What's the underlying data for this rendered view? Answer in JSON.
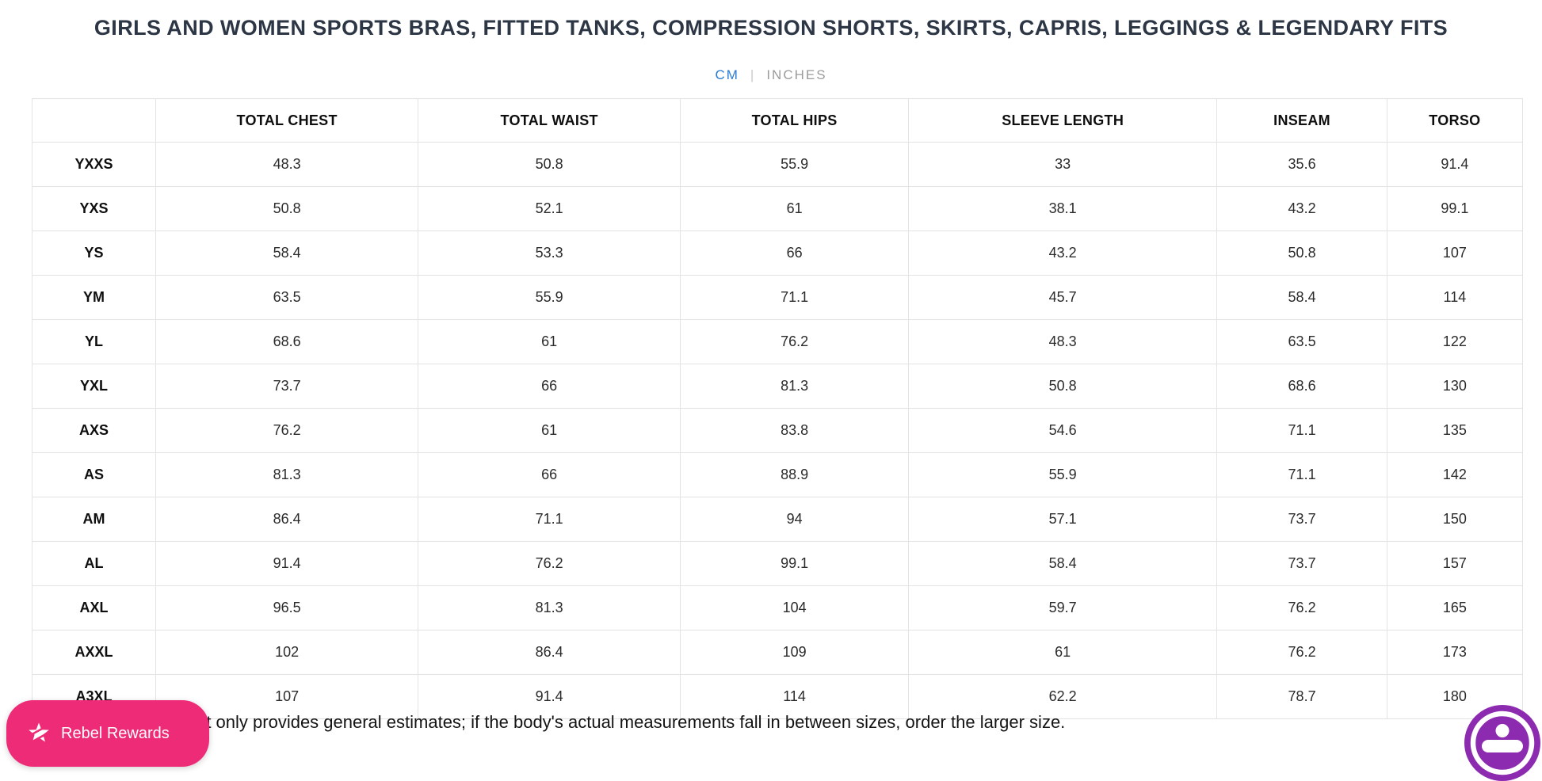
{
  "page": {
    "title": "GIRLS AND WOMEN SPORTS BRAS, FITTED TANKS, COMPRESSION SHORTS, SKIRTS, CAPRIS, LEGGINGS & LEGENDARY FITS",
    "note": "rt only provides general estimates; if the body's actual measurements fall in between sizes, order the larger size."
  },
  "unit_toggle": {
    "cm_label": "CM",
    "separator": "|",
    "inches_label": "INCHES",
    "selected": "CM",
    "active_color": "#2b7bd4",
    "inactive_color": "#9b9b9b"
  },
  "size_chart": {
    "columns": [
      "",
      "TOTAL CHEST",
      "TOTAL WAIST",
      "TOTAL HIPS",
      "SLEEVE LENGTH",
      "INSEAM",
      "TORSO"
    ],
    "rows": [
      {
        "size": "YXXS",
        "values": [
          "48.3",
          "50.8",
          "55.9",
          "33",
          "35.6",
          "91.4"
        ]
      },
      {
        "size": "YXS",
        "values": [
          "50.8",
          "52.1",
          "61",
          "38.1",
          "43.2",
          "99.1"
        ]
      },
      {
        "size": "YS",
        "values": [
          "58.4",
          "53.3",
          "66",
          "43.2",
          "50.8",
          "107"
        ]
      },
      {
        "size": "YM",
        "values": [
          "63.5",
          "55.9",
          "71.1",
          "45.7",
          "58.4",
          "114"
        ]
      },
      {
        "size": "YL",
        "values": [
          "68.6",
          "61",
          "76.2",
          "48.3",
          "63.5",
          "122"
        ]
      },
      {
        "size": "YXL",
        "values": [
          "73.7",
          "66",
          "81.3",
          "50.8",
          "68.6",
          "130"
        ]
      },
      {
        "size": "AXS",
        "values": [
          "76.2",
          "61",
          "83.8",
          "54.6",
          "71.1",
          "135"
        ]
      },
      {
        "size": "AS",
        "values": [
          "81.3",
          "66",
          "88.9",
          "55.9",
          "71.1",
          "142"
        ]
      },
      {
        "size": "AM",
        "values": [
          "86.4",
          "71.1",
          "94",
          "57.1",
          "73.7",
          "150"
        ]
      },
      {
        "size": "AL",
        "values": [
          "91.4",
          "76.2",
          "99.1",
          "58.4",
          "73.7",
          "157"
        ]
      },
      {
        "size": "AXL",
        "values": [
          "96.5",
          "81.3",
          "104",
          "59.7",
          "76.2",
          "165"
        ]
      },
      {
        "size": "AXXL",
        "values": [
          "102",
          "86.4",
          "109",
          "61",
          "76.2",
          "173"
        ]
      },
      {
        "size": "A3XL",
        "values": [
          "107",
          "91.4",
          "114",
          "62.2",
          "78.7",
          "180"
        ]
      }
    ]
  },
  "widgets": {
    "rewards_label": "Rebel Rewards",
    "rewards_color": "#EE2B77",
    "accessibility_color": "#8C2BB0"
  }
}
